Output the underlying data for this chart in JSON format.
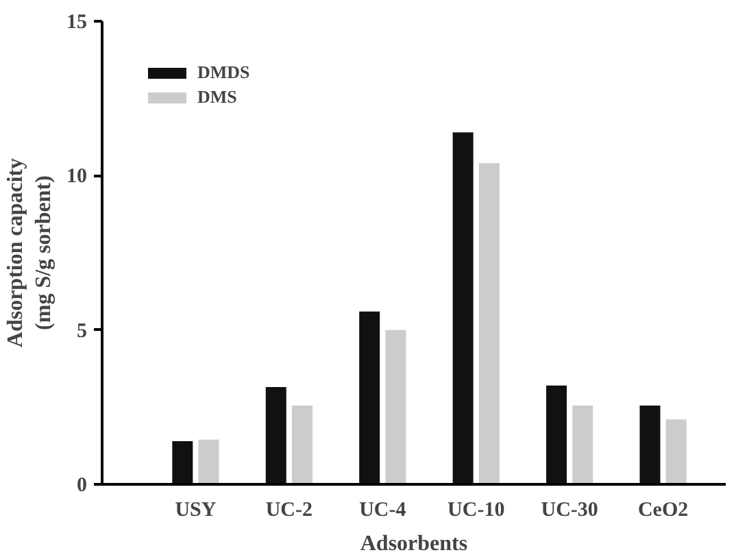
{
  "chart_data": {
    "type": "bar",
    "xlabel": "Adsorbents",
    "ylabel": "Adsorption capacity\n(mg S/g sorbent)",
    "categories": [
      "USY",
      "UC-2",
      "UC-4",
      "UC-10",
      "UC-30",
      "CeO2"
    ],
    "series": [
      {
        "name": "DMDS",
        "color": "#111111",
        "values": [
          1.4,
          3.15,
          5.6,
          11.4,
          3.2,
          2.55
        ]
      },
      {
        "name": "DMS",
        "color": "#cccccc",
        "values": [
          1.45,
          2.55,
          5.0,
          10.4,
          2.55,
          2.1
        ]
      }
    ],
    "ylim": [
      0,
      15
    ],
    "yticks": [
      0,
      5,
      10,
      15
    ],
    "grid": false,
    "legend": "top left"
  }
}
